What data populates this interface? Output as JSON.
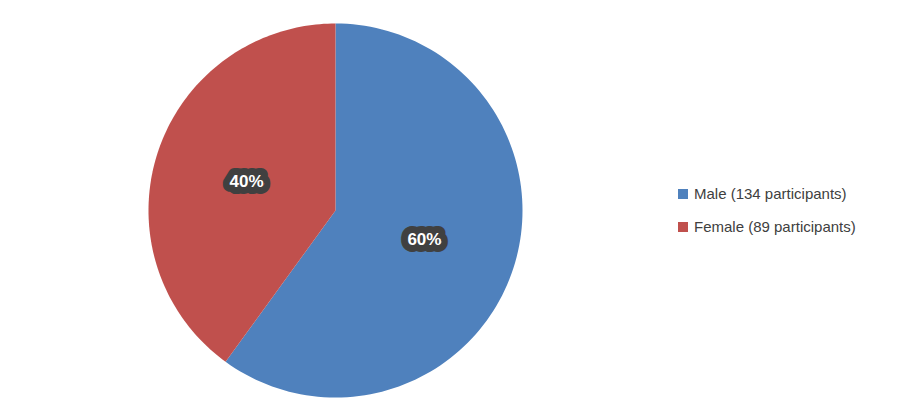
{
  "chart_data": {
    "type": "pie",
    "categories": [
      "Male (134 participants)",
      "Female (89 participants)"
    ],
    "values": [
      60,
      40
    ],
    "value_labels": [
      "60%",
      "40%"
    ],
    "colors": [
      "#4f81bd",
      "#c0504d"
    ],
    "data_labels": true,
    "legend": "right"
  }
}
